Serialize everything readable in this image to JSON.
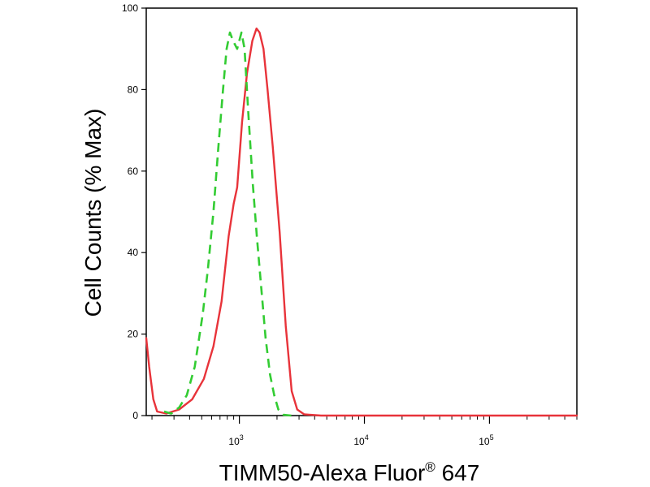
{
  "chart_data": {
    "type": "line",
    "xlabel": "TIMM50-Alexa Fluor",
    "xlabel_superscript": "®",
    "xlabel_suffix": " 647",
    "ylabel": "Cell Counts (% Max)",
    "x_scale": "log",
    "xlim": [
      180,
      500000
    ],
    "ylim": [
      0,
      100
    ],
    "x_ticks": [
      {
        "base": "10",
        "exp": "3",
        "value": 1000
      },
      {
        "base": "10",
        "exp": "4",
        "value": 10000
      },
      {
        "base": "10",
        "exp": "5",
        "value": 100000
      }
    ],
    "y_ticks": [
      0,
      20,
      40,
      60,
      80,
      100
    ],
    "grid": false,
    "legend": "none",
    "series": [
      {
        "color": "#e8333a",
        "style": "solid",
        "points": [
          [
            180,
            19
          ],
          [
            190,
            12
          ],
          [
            205,
            4
          ],
          [
            220,
            1
          ],
          [
            260,
            0.5
          ],
          [
            330,
            1.5
          ],
          [
            420,
            4
          ],
          [
            520,
            9
          ],
          [
            620,
            17
          ],
          [
            720,
            28
          ],
          [
            820,
            44
          ],
          [
            900,
            52
          ],
          [
            960,
            56
          ],
          [
            1050,
            72
          ],
          [
            1150,
            84
          ],
          [
            1270,
            92
          ],
          [
            1370,
            95
          ],
          [
            1450,
            94
          ],
          [
            1560,
            90
          ],
          [
            1680,
            80
          ],
          [
            1850,
            66
          ],
          [
            2100,
            45
          ],
          [
            2350,
            22
          ],
          [
            2620,
            6
          ],
          [
            2900,
            1.5
          ],
          [
            3300,
            0.3
          ],
          [
            4500,
            0
          ],
          [
            10000,
            0
          ],
          [
            100000,
            0
          ],
          [
            500000,
            0
          ]
        ]
      },
      {
        "color": "#33cc33",
        "style": "dashed",
        "points": [
          [
            250,
            1
          ],
          [
            285,
            0.5
          ],
          [
            330,
            2
          ],
          [
            380,
            5
          ],
          [
            440,
            12
          ],
          [
            510,
            25
          ],
          [
            560,
            36
          ],
          [
            620,
            50
          ],
          [
            680,
            66
          ],
          [
            740,
            80
          ],
          [
            790,
            90
          ],
          [
            840,
            94
          ],
          [
            890,
            92
          ],
          [
            960,
            90
          ],
          [
            1040,
            94
          ],
          [
            1100,
            90
          ],
          [
            1180,
            74
          ],
          [
            1280,
            57
          ],
          [
            1380,
            44
          ],
          [
            1500,
            31
          ],
          [
            1620,
            19
          ],
          [
            1760,
            10
          ],
          [
            1900,
            5
          ],
          [
            2050,
            1.5
          ],
          [
            2250,
            0.2
          ],
          [
            2600,
            0
          ]
        ]
      }
    ]
  }
}
